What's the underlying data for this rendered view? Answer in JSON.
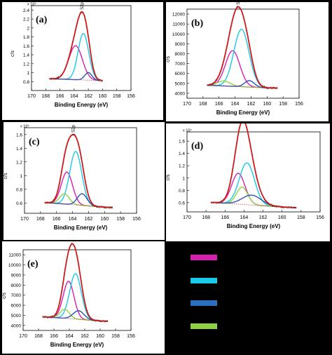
{
  "colors": {
    "envelope": "#cc1b1b",
    "raw": "#111111",
    "baseline": "#d04040",
    "magenta": "#d61fae",
    "cyan": "#19c9e8",
    "blue": "#2553b7",
    "green": "#8fd145",
    "background": "#000000"
  },
  "legend": [
    {
      "color": "#d61fae"
    },
    {
      "color": "#19c9e8"
    },
    {
      "color": "#2e6fbf"
    },
    {
      "color": "#8fd145"
    }
  ],
  "chart_data": [
    {
      "type": "line",
      "panel_label": "(a)",
      "xlabel": "Binding Energy (eV)",
      "ylabel": "c/s",
      "peak_label": "S2p",
      "y_multiplier": "x 10⁴",
      "xlim": [
        170,
        156
      ],
      "ylim": [
        0.6,
        2.5
      ],
      "x_ticks": [
        "170",
        "168",
        "166",
        "164",
        "162",
        "160",
        "158",
        "156"
      ],
      "y_ticks": [
        "0.8",
        "1",
        "1.2",
        "1.4",
        "1.6",
        "1.8",
        "2",
        "2.2",
        "2.4"
      ],
      "baseline": 0.88,
      "baseline_slope": -0.006,
      "x_range": [
        167.5,
        160
      ],
      "components": [
        {
          "color": "magenta",
          "center": 163.8,
          "height": 0.76,
          "width": 0.95
        },
        {
          "color": "cyan",
          "center": 162.7,
          "height": 1.04,
          "width": 0.75
        },
        {
          "color": "blue",
          "center": 162.0,
          "height": 0.17,
          "width": 0.5
        }
      ]
    },
    {
      "type": "line",
      "panel_label": "(b)",
      "xlabel": "Binding Energy (eV)",
      "ylabel": "c/s",
      "peak_label": "S2p",
      "xlim": [
        170,
        156
      ],
      "ylim": [
        3500,
        12500
      ],
      "x_ticks": [
        "170",
        "168",
        "166",
        "164",
        "162",
        "160",
        "158",
        "156"
      ],
      "y_ticks": [
        "4000",
        "5000",
        "6000",
        "7000",
        "8000",
        "9000",
        "10000",
        "11000",
        "12000"
      ],
      "baseline": 4900,
      "baseline_slope": -35,
      "x_range": [
        167.5,
        158.7
      ],
      "components": [
        {
          "color": "magenta",
          "center": 164.3,
          "height": 3600,
          "width": 0.9
        },
        {
          "color": "cyan",
          "center": 163.2,
          "height": 5800,
          "width": 0.95
        },
        {
          "color": "green",
          "center": 165.4,
          "height": 500,
          "width": 0.8
        },
        {
          "color": "blue",
          "center": 162.2,
          "height": 650,
          "width": 0.6
        }
      ]
    },
    {
      "type": "line",
      "panel_label": "(c)",
      "xlabel": "Binding Energy (eV)",
      "ylabel": "c/s",
      "peak_label": "S2p",
      "y_multiplier": "x 10⁴",
      "xlim": [
        170,
        156
      ],
      "ylim": [
        0.45,
        1.7
      ],
      "x_ticks": [
        "170",
        "168",
        "166",
        "164",
        "162",
        "160",
        "158",
        "156"
      ],
      "y_ticks": [
        "0.6",
        "0.8",
        "1",
        "1.2",
        "1.4",
        "1.6"
      ],
      "baseline": 0.63,
      "baseline_slope": -0.009,
      "x_range": [
        167.5,
        159
      ],
      "components": [
        {
          "color": "magenta",
          "center": 164.7,
          "height": 0.47,
          "width": 0.7
        },
        {
          "color": "cyan",
          "center": 163.6,
          "height": 0.78,
          "width": 0.75
        },
        {
          "color": "green",
          "center": 165.0,
          "height": 0.15,
          "width": 0.6
        },
        {
          "color": "blue",
          "center": 162.8,
          "height": 0.17,
          "width": 0.6
        }
      ]
    },
    {
      "type": "line",
      "panel_label": "(d)",
      "xlabel": "Binding Energy (eV)",
      "ylabel": "c/s",
      "peak_label": "S2p",
      "y_multiplier": "x 10⁴",
      "xlim": [
        170,
        156
      ],
      "ylim": [
        0.45,
        1.75
      ],
      "x_ticks": [
        "170",
        "168",
        "166",
        "164",
        "162",
        "160",
        "158",
        "156"
      ],
      "y_ticks": [
        "0.6",
        "0.8",
        "1",
        "1.2",
        "1.4",
        "1.6"
      ],
      "baseline": 0.63,
      "baseline_slope": -0.01,
      "x_range": [
        167.5,
        158.5
      ],
      "components": [
        {
          "color": "magenta",
          "center": 164.6,
          "height": 0.5,
          "width": 0.7
        },
        {
          "color": "cyan",
          "center": 163.7,
          "height": 0.68,
          "width": 0.8
        },
        {
          "color": "green",
          "center": 164.2,
          "height": 0.28,
          "width": 0.6
        },
        {
          "color": "blue",
          "center": 163.2,
          "height": 0.16,
          "width": 1.0
        }
      ]
    },
    {
      "type": "line",
      "panel_label": "(e)",
      "xlabel": "Binding Energy (eV)",
      "ylabel": "c/s",
      "peak_label": "S2p",
      "xlim": [
        170,
        156
      ],
      "ylim": [
        3500,
        11500
      ],
      "x_ticks": [
        "170",
        "168",
        "166",
        "164",
        "162",
        "160",
        "158",
        "156"
      ],
      "y_ticks": [
        "4000",
        "5000",
        "6000",
        "7000",
        "8000",
        "9000",
        "10000",
        "11000"
      ],
      "baseline": 5000,
      "baseline_slope": -55,
      "x_range": [
        167.5,
        159
      ],
      "components": [
        {
          "color": "magenta",
          "center": 164.1,
          "height": 3700,
          "width": 0.7
        },
        {
          "color": "cyan",
          "center": 163.2,
          "height": 4500,
          "width": 0.75
        },
        {
          "color": "green",
          "center": 164.6,
          "height": 900,
          "width": 0.6
        },
        {
          "color": "blue",
          "center": 162.8,
          "height": 850,
          "width": 0.7
        }
      ]
    }
  ]
}
